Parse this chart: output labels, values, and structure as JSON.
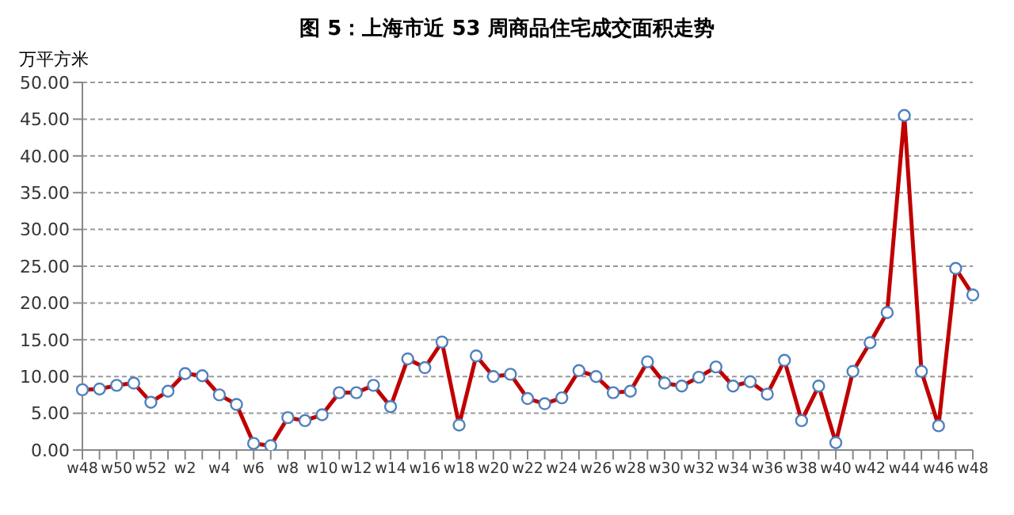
{
  "chart_data": {
    "type": "line",
    "title": "图 5：上海市近 53 周商品住宅成交面积走势",
    "ylabel": "万平方米",
    "categories": [
      "w48",
      null,
      "w50",
      null,
      "w52",
      null,
      "w2",
      null,
      "w4",
      null,
      "w6",
      null,
      "w8",
      null,
      "w10",
      null,
      "w12",
      null,
      "w14",
      null,
      "w16",
      null,
      "w18",
      null,
      "w20",
      null,
      "w22",
      null,
      "w24",
      null,
      "w26",
      null,
      "w28",
      null,
      "w30",
      null,
      "w32",
      null,
      "w34",
      null,
      "w36",
      null,
      "w38",
      null,
      "w40",
      null,
      "w42",
      null,
      "w44",
      null,
      "w46",
      null,
      "w48"
    ],
    "series": [
      {
        "color": "#c00000",
        "values": [
          8.2,
          8.3,
          8.8,
          9.1,
          6.5,
          8.0,
          10.4,
          10.1,
          7.5,
          6.2,
          0.9,
          0.6,
          4.4,
          4.0,
          4.8,
          7.8,
          7.8,
          8.8,
          5.9,
          12.4,
          11.2,
          14.7,
          3.4,
          12.8,
          10.0,
          10.3,
          7.0,
          6.3,
          7.1,
          10.8,
          10.0,
          7.8,
          8.0,
          12.0,
          9.1,
          8.7,
          9.9,
          11.3,
          8.7,
          9.3,
          7.6,
          12.2,
          4.0,
          8.7,
          1.0,
          10.7,
          14.6,
          18.7,
          45.5,
          10.7,
          3.3,
          24.7,
          21.1
        ]
      }
    ],
    "ylim": [
      0,
      50
    ],
    "yticks": [
      {
        "value": 0,
        "label": "0.00"
      },
      {
        "value": 5,
        "label": "5.00"
      },
      {
        "value": 10,
        "label": "10.00"
      },
      {
        "value": 15,
        "label": "15.00"
      },
      {
        "value": 20,
        "label": "20.00"
      },
      {
        "value": 25,
        "label": "25.00"
      },
      {
        "value": 30,
        "label": "30.00"
      },
      {
        "value": 35,
        "label": "35.00"
      },
      {
        "value": 40,
        "label": "40.00"
      },
      {
        "value": 45,
        "label": "45.00"
      },
      {
        "value": 50,
        "label": "50.00"
      }
    ],
    "grid": "y",
    "marker": "circle",
    "line_style": "solid",
    "legend": false
  }
}
